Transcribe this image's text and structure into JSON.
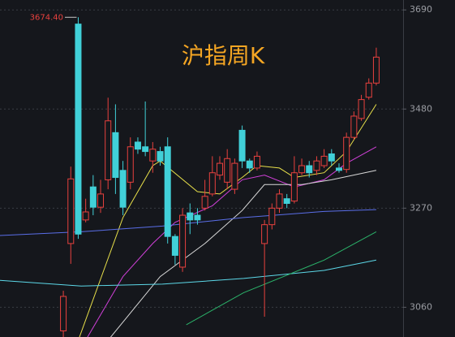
{
  "chart_data": {
    "type": "candlestick",
    "title": "沪指周K",
    "annotation": {
      "value": 3674.4,
      "label": "3674.40"
    },
    "up_color": "#e8413e",
    "down_color": "#41d0d8",
    "candles": {
      "open": [
        3010,
        3195,
        3660,
        3245,
        3315,
        3272,
        3330,
        3430,
        3350,
        3325,
        3410,
        3400,
        3370,
        3390,
        3400,
        3210,
        3145,
        3260,
        3255,
        3270,
        3300,
        3340,
        3325,
        3310,
        3435,
        3370,
        3355,
        3195,
        3235,
        3270,
        3290,
        3285,
        3345,
        3360,
        3350,
        3360,
        3385,
        3355,
        3352,
        3420,
        3460,
        3505,
        3535
      ],
      "close": [
        3083,
        3332,
        3215,
        3262,
        3272,
        3300,
        3455,
        3335,
        3272,
        3400,
        3395,
        3390,
        3395,
        3370,
        3210,
        3170,
        3255,
        3245,
        3245,
        3295,
        3345,
        3365,
        3375,
        3365,
        3370,
        3355,
        3380,
        3235,
        3270,
        3300,
        3280,
        3345,
        3360,
        3345,
        3370,
        3380,
        3370,
        3350,
        3420,
        3465,
        3500,
        3535,
        3590
      ],
      "high": [
        3095,
        3358,
        3674.4,
        3290,
        3340,
        3330,
        3504,
        3490,
        3370,
        3420,
        3420,
        3496,
        3410,
        3400,
        3420,
        3215,
        3270,
        3280,
        3270,
        3330,
        3380,
        3380,
        3395,
        3375,
        3445,
        3375,
        3390,
        3245,
        3280,
        3310,
        3300,
        3380,
        3375,
        3370,
        3380,
        3395,
        3395,
        3365,
        3430,
        3475,
        3510,
        3545,
        3610
      ],
      "low": [
        2990,
        3152,
        3205,
        3240,
        3255,
        3260,
        3310,
        3300,
        3255,
        3310,
        3385,
        3380,
        3345,
        3360,
        3195,
        3150,
        3135,
        3215,
        3235,
        3265,
        3295,
        3330,
        3310,
        3300,
        3355,
        3345,
        3350,
        3040,
        3225,
        3260,
        3270,
        3280,
        3340,
        3335,
        3340,
        3355,
        3360,
        3345,
        3345,
        3415,
        3455,
        3500,
        3530
      ]
    },
    "series": [
      {
        "color": "#e8e04a",
        "x": [
          2,
          8,
          12,
          13,
          18,
          21,
          24,
          26,
          29,
          31,
          35,
          38,
          42
        ],
        "values": [
          2990,
          3250,
          3360,
          3370,
          3305,
          3300,
          3335,
          3360,
          3355,
          3335,
          3345,
          3390,
          3490
        ]
      },
      {
        "color": "#d040d8",
        "x": [
          3,
          8,
          12,
          15,
          20,
          24,
          27,
          31,
          35,
          38,
          42
        ],
        "values": [
          2990,
          3125,
          3195,
          3240,
          3275,
          3330,
          3340,
          3315,
          3330,
          3365,
          3400
        ]
      },
      {
        "color": "#d8d8d8",
        "x": [
          6,
          13,
          19,
          24,
          27,
          32,
          36,
          42
        ],
        "values": [
          2990,
          3125,
          3195,
          3265,
          3320,
          3320,
          3330,
          3350
        ]
      },
      {
        "color": "#5a6ee8",
        "x": [
          -8.5,
          2.4,
          13.3,
          24.2,
          35,
          42
        ],
        "values": [
          3212,
          3220,
          3232,
          3250,
          3263,
          3267
        ]
      },
      {
        "color": "#5cd8e8",
        "x": [
          -8.5,
          2.4,
          13.3,
          24.2,
          35,
          42
        ],
        "values": [
          3117,
          3105,
          3109,
          3121,
          3138,
          3160
        ]
      },
      {
        "color": "#2bb36a",
        "x": [
          16.5,
          24.2,
          35,
          42
        ],
        "values": [
          3023,
          3091,
          3160,
          3220
        ]
      }
    ],
    "xlim": [
      -8.5,
      45.6
    ],
    "ylim": [
      2997,
      3711
    ],
    "yticks": [
      3690,
      3480,
      3270,
      3060
    ],
    "grid": true
  }
}
